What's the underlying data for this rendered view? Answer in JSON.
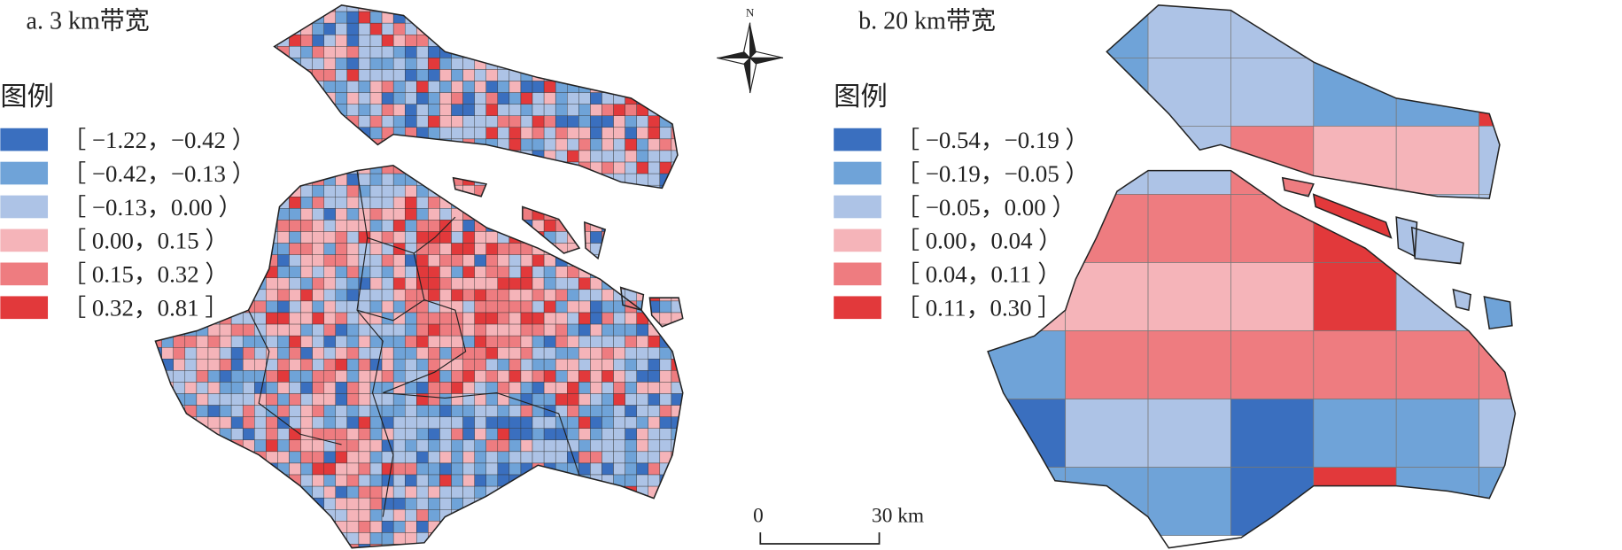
{
  "panels": [
    {
      "title": "a. 3 km带宽",
      "legend": {
        "title": "图例",
        "items": [
          {
            "label": "［ −1.22，−0.42 ）",
            "color": "#3a6fbf"
          },
          {
            "label": "［ −0.42，−0.13 ）",
            "color": "#6fa3d8"
          },
          {
            "label": "［ −0.13，0.00 ）",
            "color": "#adc3e6"
          },
          {
            "label": "［ 0.00，0.15 ）",
            "color": "#f5b4b9"
          },
          {
            "label": "［ 0.15，0.32 ）",
            "color": "#ee7c80"
          },
          {
            "label": "［ 0.32，0.81 ］",
            "color": "#e2393b"
          }
        ]
      }
    },
    {
      "title": "b. 20 km带宽",
      "legend": {
        "title": "图例",
        "items": [
          {
            "label": "［ −0.54，−0.19 ）",
            "color": "#3a6fbf"
          },
          {
            "label": "［ −0.19，−0.05 ）",
            "color": "#6fa3d8"
          },
          {
            "label": "［ −0.05，0.00 ）",
            "color": "#adc3e6"
          },
          {
            "label": "［ 0.00，0.04 ）",
            "color": "#f5b4b9"
          },
          {
            "label": "［ 0.04，0.11 ）",
            "color": "#ee7c80"
          },
          {
            "label": "［ 0.11，0.30 ］",
            "color": "#e2393b"
          }
        ]
      }
    }
  ],
  "north": "N",
  "scale": {
    "start": "0",
    "end": "30 km"
  }
}
